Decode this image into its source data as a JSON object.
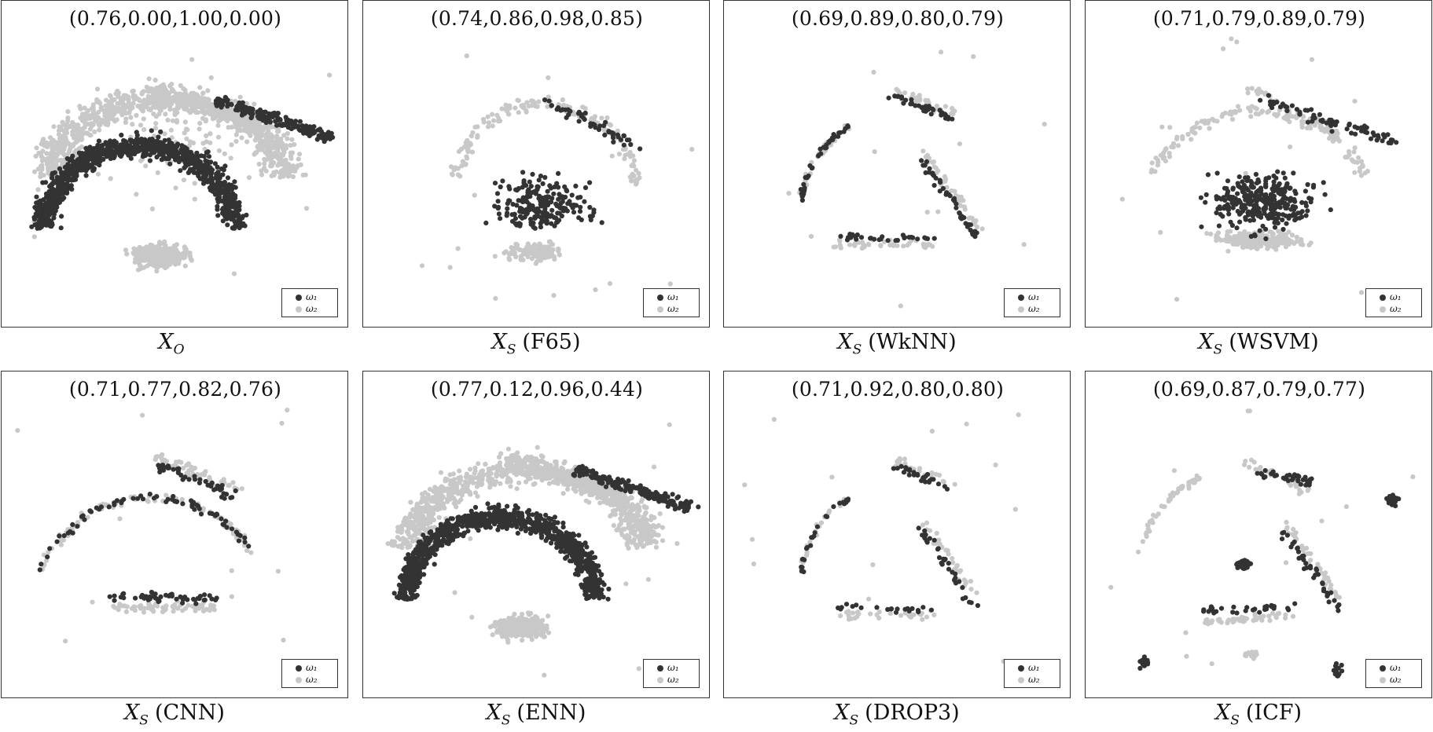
{
  "colors": {
    "omega1": "#333333",
    "omega2": "#c8c8c8"
  },
  "legend": {
    "omega1": "ω₁",
    "omega2": "ω₂"
  },
  "chart_data": [
    {
      "type": "scatter",
      "metrics": "(0.76,0.00,1.00,0.00)",
      "caption_var": "X",
      "caption_sub": "O",
      "caption_method": "",
      "preset": "full"
    },
    {
      "type": "scatter",
      "metrics": "(0.74,0.86,0.98,0.85)",
      "caption_var": "X",
      "caption_sub": "S",
      "caption_method": "(F65)",
      "preset": "f65"
    },
    {
      "type": "scatter",
      "metrics": "(0.69,0.89,0.80,0.79)",
      "caption_var": "X",
      "caption_sub": "S",
      "caption_method": "(WkNN)",
      "preset": "bands"
    },
    {
      "type": "scatter",
      "metrics": "(0.71,0.79,0.89,0.79)",
      "caption_var": "X",
      "caption_sub": "S",
      "caption_method": "(WSVM)",
      "preset": "svm"
    },
    {
      "type": "scatter",
      "metrics": "(0.71,0.77,0.82,0.76)",
      "caption_var": "X",
      "caption_sub": "S",
      "caption_method": "(CNN)",
      "preset": "cnn"
    },
    {
      "type": "scatter",
      "metrics": "(0.77,0.12,0.96,0.44)",
      "caption_var": "X",
      "caption_sub": "S",
      "caption_method": "(ENN)",
      "preset": "enn"
    },
    {
      "type": "scatter",
      "metrics": "(0.71,0.92,0.80,0.80)",
      "caption_var": "X",
      "caption_sub": "S",
      "caption_method": "(DROP3)",
      "preset": "drop3"
    },
    {
      "type": "scatter",
      "metrics": "(0.69,0.87,0.79,0.77)",
      "caption_var": "X",
      "caption_sub": "S",
      "caption_method": "(ICF)",
      "preset": "icf"
    }
  ]
}
